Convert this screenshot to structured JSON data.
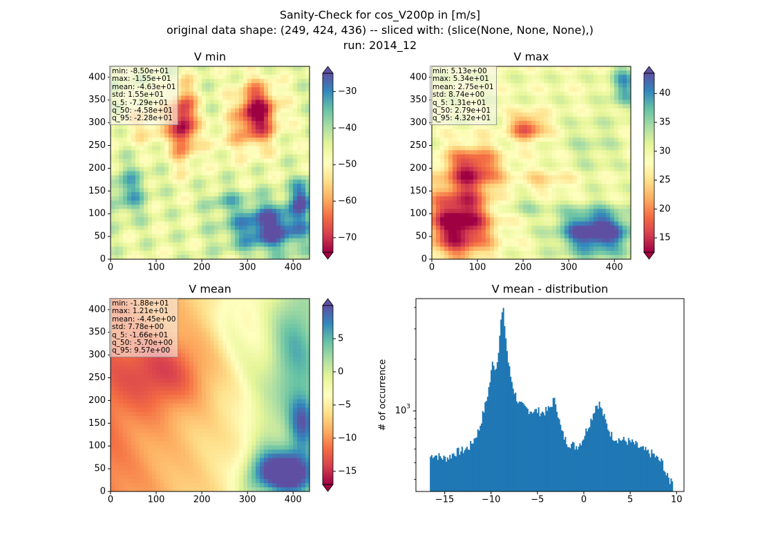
{
  "figure": {
    "title_lines": [
      "Sanity-Check for cos_V200p in [m/s]",
      "original data shape: (249, 424, 436) -- sliced with: (slice(None, None, None),)",
      "run: 2014_12"
    ]
  },
  "colormap": "Spectral",
  "panels": [
    {
      "title": "V min",
      "stats": [
        "min: -8.50e+01",
        "max: -1.55e+01",
        "mean: -4.63e+01",
        "std: 1.55e+01",
        "q_5: -7.29e+01",
        "q_50: -4.58e+01",
        "q_95: -2.28e+01"
      ],
      "xticks": [
        "0",
        "100",
        "200",
        "300",
        "400"
      ],
      "yticks": [
        "0",
        "50",
        "100",
        "150",
        "200",
        "250",
        "300",
        "350",
        "400"
      ],
      "colorbar": {
        "vmin": -74,
        "vmax": -25,
        "ticks": [
          -70,
          -60,
          -50,
          -40,
          -30
        ],
        "labels": [
          "−70",
          "−60",
          "−50",
          "−40",
          "−30"
        ]
      }
    },
    {
      "title": "V max",
      "stats": [
        "min: 5.13e+00",
        "max: 5.34e+01",
        "mean: 2.75e+01",
        "std: 8.74e+00",
        "q_5: 1.31e+01",
        "q_50: 2.79e+01",
        "q_95: 4.32e+01"
      ],
      "xticks": [
        "0",
        "100",
        "200",
        "300",
        "400"
      ],
      "yticks": [
        "0",
        "50",
        "100",
        "150",
        "200",
        "250",
        "300",
        "350",
        "400"
      ],
      "colorbar": {
        "vmin": 12.5,
        "vmax": 43.5,
        "ticks": [
          15,
          20,
          25,
          30,
          35,
          40
        ],
        "labels": [
          "15",
          "20",
          "25",
          "30",
          "35",
          "40"
        ]
      }
    },
    {
      "title": "V mean",
      "stats": [
        "min: -1.88e+01",
        "max: 1.21e+01",
        "mean: -4.45e+00",
        "std: 7.78e+00",
        "q_5: -1.66e+01",
        "q_50: -5.70e+00",
        "q_95: 9.57e+00"
      ],
      "xticks": [
        "0",
        "100",
        "200",
        "300",
        "400"
      ],
      "yticks": [
        "0",
        "50",
        "100",
        "150",
        "200",
        "250",
        "300",
        "350",
        "400"
      ],
      "colorbar": {
        "vmin": -17,
        "vmax": 10,
        "ticks": [
          -15,
          -10,
          -5,
          0,
          5
        ],
        "labels": [
          "−15",
          "−10",
          "−5",
          "0",
          "5"
        ]
      }
    }
  ],
  "chart_data": {
    "type": "bar",
    "title": "V mean - distribution",
    "ylabel": "# of occurrence",
    "xlabel": "",
    "yscale": "log",
    "ylim": [
      340,
      4500
    ],
    "xlim": [
      -18.1,
      10.8
    ],
    "xticks": [
      -15,
      -10,
      -5,
      0,
      5,
      10
    ],
    "xtick_labels": [
      "−15",
      "−10",
      "−5",
      "0",
      "5",
      "10"
    ],
    "ytick_major_label": "10",
    "ytick_major_exp": "3",
    "color": "#1f77b4",
    "bin_range": [
      -16.6,
      9.6
    ],
    "anchors": [
      [
        -16.6,
        540
      ],
      [
        -16.2,
        560
      ],
      [
        -15.5,
        540
      ],
      [
        -15.0,
        530
      ],
      [
        -14.5,
        540
      ],
      [
        -14.0,
        570
      ],
      [
        -13.0,
        590
      ],
      [
        -12.3,
        620
      ],
      [
        -11.8,
        690
      ],
      [
        -11.3,
        780
      ],
      [
        -10.9,
        950
      ],
      [
        -10.5,
        1150
      ],
      [
        -10.1,
        1500
      ],
      [
        -9.8,
        2000
      ],
      [
        -9.5,
        1700
      ],
      [
        -9.2,
        2300
      ],
      [
        -8.9,
        3500
      ],
      [
        -8.7,
        3900
      ],
      [
        -8.5,
        3000
      ],
      [
        -8.2,
        2000
      ],
      [
        -7.9,
        1600
      ],
      [
        -7.5,
        1300
      ],
      [
        -7.0,
        1100
      ],
      [
        -6.5,
        1050
      ],
      [
        -6.0,
        1020
      ],
      [
        -5.5,
        1000
      ],
      [
        -5.0,
        1000
      ],
      [
        -4.5,
        980
      ],
      [
        -4.0,
        1000
      ],
      [
        -3.6,
        1050
      ],
      [
        -3.3,
        1150
      ],
      [
        -3.0,
        1120
      ],
      [
        -2.7,
        900
      ],
      [
        -2.4,
        760
      ],
      [
        -2.0,
        680
      ],
      [
        -1.7,
        650
      ],
      [
        -1.3,
        640
      ],
      [
        -0.9,
        620
      ],
      [
        -0.5,
        640
      ],
      [
        -0.1,
        690
      ],
      [
        0.3,
        780
      ],
      [
        0.8,
        900
      ],
      [
        1.3,
        1080
      ],
      [
        1.7,
        1100
      ],
      [
        2.0,
        980
      ],
      [
        2.5,
        820
      ],
      [
        3.0,
        720
      ],
      [
        3.5,
        690
      ],
      [
        4.0,
        680
      ],
      [
        4.5,
        670
      ],
      [
        5.0,
        660
      ],
      [
        5.5,
        640
      ],
      [
        6.0,
        610
      ],
      [
        6.5,
        590
      ],
      [
        7.0,
        570
      ],
      [
        7.5,
        560
      ],
      [
        8.0,
        520
      ],
      [
        8.5,
        500
      ],
      [
        8.9,
        420
      ],
      [
        9.3,
        390
      ],
      [
        9.6,
        410
      ]
    ]
  }
}
